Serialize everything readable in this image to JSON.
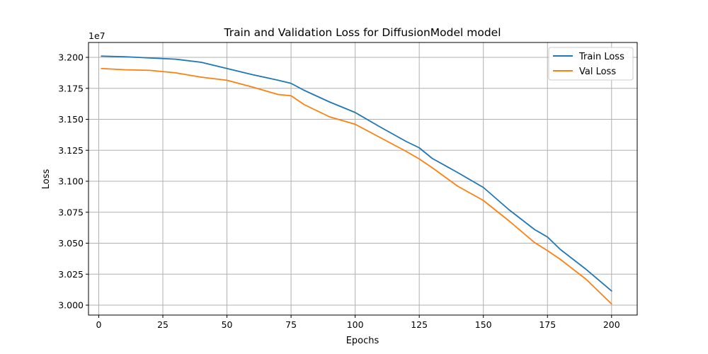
{
  "chart_data": {
    "type": "line",
    "title": "Train and Validation Loss for DiffusionModel model",
    "xlabel": "Epochs",
    "ylabel": "Loss",
    "y_offset_label": "1e7",
    "xlim": [
      -4,
      210
    ],
    "ylim": [
      2.992,
      3.212
    ],
    "y_scale_factor": 10000000,
    "xticks": [
      0,
      25,
      50,
      75,
      100,
      125,
      150,
      175,
      200
    ],
    "xtick_labels": [
      "0",
      "25",
      "50",
      "75",
      "100",
      "125",
      "150",
      "175",
      "200"
    ],
    "yticks": [
      3.0,
      3.025,
      3.05,
      3.075,
      3.1,
      3.125,
      3.15,
      3.175,
      3.2
    ],
    "ytick_labels": [
      "3.000",
      "3.025",
      "3.050",
      "3.075",
      "3.100",
      "3.125",
      "3.150",
      "3.175",
      "3.200"
    ],
    "grid": true,
    "legend_position": "top-right",
    "x": [
      1,
      10,
      20,
      25,
      30,
      40,
      50,
      60,
      70,
      75,
      80,
      90,
      100,
      110,
      120,
      125,
      130,
      140,
      150,
      160,
      170,
      175,
      180,
      190,
      200
    ],
    "series": [
      {
        "name": "Train Loss",
        "color": "#1f77b4",
        "values": [
          3.201,
          3.2005,
          3.1995,
          3.199,
          3.1985,
          3.196,
          3.191,
          3.186,
          3.1815,
          3.179,
          3.1735,
          3.164,
          3.1555,
          3.1435,
          3.132,
          3.127,
          3.1185,
          3.107,
          3.095,
          3.077,
          3.061,
          3.055,
          3.045,
          3.029,
          3.0115
        ]
      },
      {
        "name": "Val Loss",
        "color": "#ff7f0e",
        "values": [
          3.191,
          3.19,
          3.1895,
          3.1885,
          3.1875,
          3.184,
          3.1815,
          3.176,
          3.17,
          3.169,
          3.162,
          3.152,
          3.146,
          3.135,
          3.124,
          3.118,
          3.111,
          3.096,
          3.0845,
          3.068,
          3.0505,
          3.044,
          3.037,
          3.021,
          3.001
        ]
      }
    ]
  }
}
